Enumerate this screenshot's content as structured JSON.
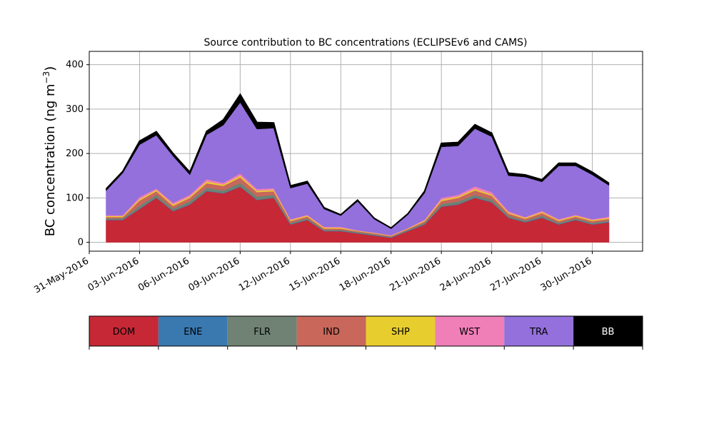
{
  "chart_data": {
    "type": "area",
    "title": "Source contribution to BC concentrations (ECLIPSEv6 and CAMS)",
    "ylabel_main": "BC concentration (ng m",
    "ylabel_sup": "−3",
    "ylabel_close": ")",
    "xlabel": "",
    "ylim": [
      -20,
      430
    ],
    "xlim": [
      "2016-05-31",
      "2016-07-03"
    ],
    "grid": true,
    "stacked": true,
    "x_ticks": [
      "31-May-2016",
      "03-Jun-2016",
      "06-Jun-2016",
      "09-Jun-2016",
      "12-Jun-2016",
      "15-Jun-2016",
      "18-Jun-2016",
      "21-Jun-2016",
      "24-Jun-2016",
      "27-Jun-2016",
      "30-Jun-2016"
    ],
    "y_ticks": [
      0,
      100,
      200,
      300,
      400
    ],
    "x": [
      "2016-06-01",
      "2016-06-02",
      "2016-06-03",
      "2016-06-04",
      "2016-06-05",
      "2016-06-06",
      "2016-06-07",
      "2016-06-08",
      "2016-06-09",
      "2016-06-10",
      "2016-06-11",
      "2016-06-12",
      "2016-06-13",
      "2016-06-14",
      "2016-06-15",
      "2016-06-16",
      "2016-06-17",
      "2016-06-18",
      "2016-06-19",
      "2016-06-20",
      "2016-06-21",
      "2016-06-22",
      "2016-06-23",
      "2016-06-24",
      "2016-06-25",
      "2016-06-26",
      "2016-06-27",
      "2016-06-28",
      "2016-06-29",
      "2016-06-30",
      "2016-07-01"
    ],
    "series": [
      {
        "name": "DOM",
        "color": "#c62836",
        "values": [
          50,
          50,
          75,
          100,
          70,
          85,
          115,
          110,
          125,
          95,
          100,
          40,
          50,
          25,
          25,
          20,
          15,
          10,
          25,
          40,
          80,
          85,
          100,
          90,
          55,
          45,
          55,
          40,
          50,
          40,
          45
        ]
      },
      {
        "name": "ENE",
        "color": "#3a78b0",
        "values": [
          1,
          1,
          1,
          1,
          1,
          1,
          1,
          1,
          1,
          1,
          1,
          1,
          1,
          1,
          1,
          1,
          1,
          1,
          1,
          1,
          1,
          1,
          1,
          1,
          1,
          1,
          1,
          1,
          1,
          1,
          1
        ]
      },
      {
        "name": "FLR",
        "color": "#6f8273",
        "values": [
          3,
          3,
          6,
          6,
          5,
          6,
          7,
          6,
          8,
          7,
          6,
          3,
          3,
          2,
          2,
          2,
          2,
          1,
          2,
          3,
          5,
          6,
          6,
          6,
          4,
          3,
          4,
          3,
          3,
          3,
          3
        ]
      },
      {
        "name": "IND",
        "color": "#c8675a",
        "values": [
          3,
          3,
          12,
          8,
          6,
          8,
          10,
          10,
          12,
          10,
          8,
          4,
          4,
          3,
          3,
          2,
          2,
          2,
          2,
          3,
          7,
          8,
          10,
          8,
          5,
          4,
          6,
          4,
          4,
          4,
          4
        ]
      },
      {
        "name": "SHP",
        "color": "#e8cd2e",
        "values": [
          2,
          2,
          3,
          3,
          3,
          3,
          4,
          3,
          4,
          3,
          3,
          2,
          2,
          2,
          2,
          1,
          1,
          1,
          1,
          2,
          3,
          3,
          3,
          3,
          2,
          2,
          2,
          2,
          2,
          2,
          2
        ]
      },
      {
        "name": "WST",
        "color": "#f07fb8",
        "values": [
          2,
          2,
          5,
          3,
          4,
          4,
          5,
          4,
          5,
          4,
          4,
          2,
          2,
          2,
          2,
          1,
          1,
          1,
          1,
          2,
          4,
          4,
          6,
          5,
          3,
          2,
          3,
          2,
          2,
          2,
          3
        ]
      },
      {
        "name": "TRA",
        "color": "#9370db",
        "values": [
          55,
          95,
          118,
          120,
          105,
          45,
          100,
          130,
          160,
          135,
          135,
          70,
          70,
          40,
          25,
          65,
          30,
          15,
          30,
          60,
          115,
          110,
          130,
          125,
          80,
          90,
          65,
          120,
          110,
          100,
          70
        ]
      },
      {
        "name": "BB",
        "color": "#000000",
        "values": [
          4,
          4,
          8,
          8,
          6,
          6,
          8,
          12,
          18,
          15,
          12,
          5,
          5,
          3,
          2,
          3,
          2,
          1,
          2,
          4,
          8,
          8,
          9,
          8,
          6,
          5,
          5,
          6,
          6,
          6,
          5
        ]
      }
    ],
    "legend": [
      "DOM",
      "ENE",
      "FLR",
      "IND",
      "SHP",
      "WST",
      "TRA",
      "BB"
    ],
    "legend_text_colors": [
      "#000000",
      "#000000",
      "#000000",
      "#000000",
      "#000000",
      "#000000",
      "#000000",
      "#ffffff"
    ],
    "legend_placement": "bottom"
  }
}
